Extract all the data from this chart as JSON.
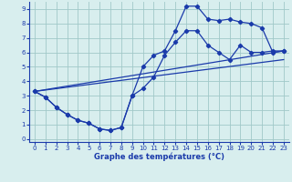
{
  "line1_x": [
    0,
    1,
    2,
    3,
    4,
    5,
    6,
    7,
    8,
    9,
    10,
    11,
    12,
    13,
    14,
    15,
    16,
    17,
    18,
    19,
    20,
    21,
    22,
    23
  ],
  "line1_y": [
    3.3,
    2.9,
    2.2,
    1.7,
    1.3,
    1.1,
    0.7,
    0.6,
    0.8,
    3.0,
    3.5,
    4.3,
    5.8,
    6.7,
    7.5,
    7.5,
    6.5,
    6.0,
    5.5,
    6.5,
    6.0,
    6.0,
    6.1,
    6.1
  ],
  "line2_x": [
    0,
    23
  ],
  "line2_y": [
    3.3,
    6.1
  ],
  "line3_x": [
    0,
    1,
    2,
    3,
    4,
    5,
    6,
    7,
    8,
    9,
    10,
    11,
    12,
    13,
    14,
    15,
    16,
    17,
    18,
    19,
    20,
    21,
    22,
    23
  ],
  "line3_y": [
    3.3,
    2.9,
    2.2,
    1.7,
    1.3,
    1.1,
    0.7,
    0.6,
    0.8,
    3.0,
    5.0,
    5.8,
    6.1,
    7.5,
    9.2,
    9.2,
    8.3,
    8.2,
    8.3,
    8.1,
    8.0,
    7.7,
    6.0,
    6.1
  ],
  "line4_x": [
    0,
    23
  ],
  "line4_y": [
    3.3,
    6.1
  ],
  "line_color": "#1a3aaa",
  "bg_color": "#d8eeee",
  "grid_color": "#a0c8c8",
  "xlabel": "Graphe des températures (°C)",
  "xlim": [
    -0.5,
    23.5
  ],
  "ylim": [
    -0.2,
    9.5
  ],
  "xticks": [
    0,
    1,
    2,
    3,
    4,
    5,
    6,
    7,
    8,
    9,
    10,
    11,
    12,
    13,
    14,
    15,
    16,
    17,
    18,
    19,
    20,
    21,
    22,
    23
  ],
  "yticks": [
    0,
    1,
    2,
    3,
    4,
    5,
    6,
    7,
    8,
    9
  ]
}
